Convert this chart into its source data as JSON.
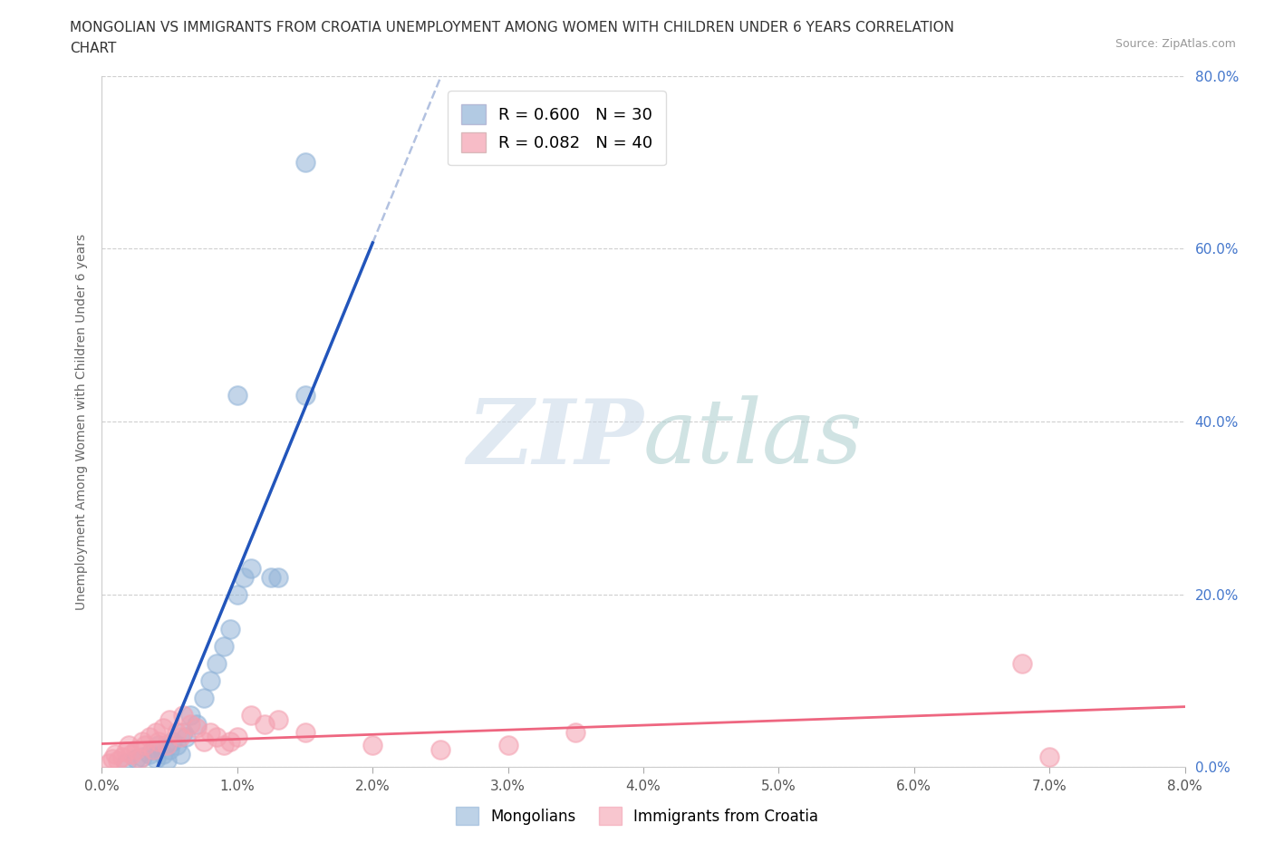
{
  "title_line1": "MONGOLIAN VS IMMIGRANTS FROM CROATIA UNEMPLOYMENT AMONG WOMEN WITH CHILDREN UNDER 6 YEARS CORRELATION",
  "title_line2": "CHART",
  "source": "Source: ZipAtlas.com",
  "ylabel": "Unemployment Among Women with Children Under 6 years",
  "xlim": [
    0.0,
    0.08
  ],
  "ylim": [
    0.0,
    0.8
  ],
  "xticks": [
    0.0,
    0.01,
    0.02,
    0.03,
    0.04,
    0.05,
    0.06,
    0.07,
    0.08
  ],
  "yticks": [
    0.0,
    0.2,
    0.4,
    0.6,
    0.8
  ],
  "xtick_labels": [
    "0.0%",
    "1.0%",
    "2.0%",
    "3.0%",
    "4.0%",
    "5.0%",
    "6.0%",
    "7.0%",
    "8.0%"
  ],
  "ytick_labels": [
    "0.0%",
    "20.0%",
    "40.0%",
    "60.0%",
    "80.0%"
  ],
  "mongolian_R": 0.6,
  "mongolian_N": 30,
  "croatia_R": 0.082,
  "croatia_N": 40,
  "mongolian_color": "#92B4D8",
  "croatia_color": "#F4A0B0",
  "mongolian_line_color": "#2255BB",
  "croatia_line_color": "#EE6680",
  "dashed_color": "#AABBDD",
  "background_color": "#FFFFFF",
  "grid_color": "#BBBBBB",
  "right_tick_color": "#4477CC",
  "mongolian_x": [
    0.0018,
    0.0025,
    0.003,
    0.0035,
    0.0038,
    0.004,
    0.0042,
    0.0045,
    0.0048,
    0.005,
    0.0052,
    0.0055,
    0.0058,
    0.006,
    0.0062,
    0.0065,
    0.007,
    0.0075,
    0.008,
    0.0085,
    0.009,
    0.0095,
    0.01,
    0.0105,
    0.011,
    0.0125,
    0.013,
    0.015,
    0.01,
    0.015
  ],
  "mongolian_y": [
    0.005,
    0.01,
    0.012,
    0.015,
    0.02,
    0.01,
    0.025,
    0.015,
    0.008,
    0.02,
    0.03,
    0.025,
    0.015,
    0.04,
    0.035,
    0.06,
    0.05,
    0.08,
    0.1,
    0.12,
    0.14,
    0.16,
    0.2,
    0.22,
    0.23,
    0.22,
    0.22,
    0.43,
    0.43,
    0.7
  ],
  "croatia_x": [
    0.0005,
    0.0008,
    0.001,
    0.0012,
    0.0015,
    0.0018,
    0.002,
    0.0022,
    0.0025,
    0.0028,
    0.003,
    0.0032,
    0.0035,
    0.0038,
    0.004,
    0.0042,
    0.0045,
    0.0048,
    0.005,
    0.0055,
    0.0058,
    0.006,
    0.0065,
    0.007,
    0.0075,
    0.008,
    0.0085,
    0.009,
    0.0095,
    0.01,
    0.011,
    0.012,
    0.013,
    0.015,
    0.02,
    0.025,
    0.03,
    0.035,
    0.068,
    0.07
  ],
  "croatia_y": [
    0.005,
    0.01,
    0.015,
    0.008,
    0.012,
    0.018,
    0.025,
    0.015,
    0.02,
    0.01,
    0.03,
    0.025,
    0.035,
    0.02,
    0.04,
    0.03,
    0.045,
    0.025,
    0.055,
    0.04,
    0.035,
    0.06,
    0.05,
    0.045,
    0.03,
    0.04,
    0.035,
    0.025,
    0.03,
    0.035,
    0.06,
    0.05,
    0.055,
    0.04,
    0.025,
    0.02,
    0.025,
    0.04,
    0.12,
    0.012
  ],
  "watermark_zip": "ZIP",
  "watermark_atlas": "atlas",
  "legend_mongolian": "R = 0.600   N = 30",
  "legend_croatia": "R = 0.082   N = 40"
}
